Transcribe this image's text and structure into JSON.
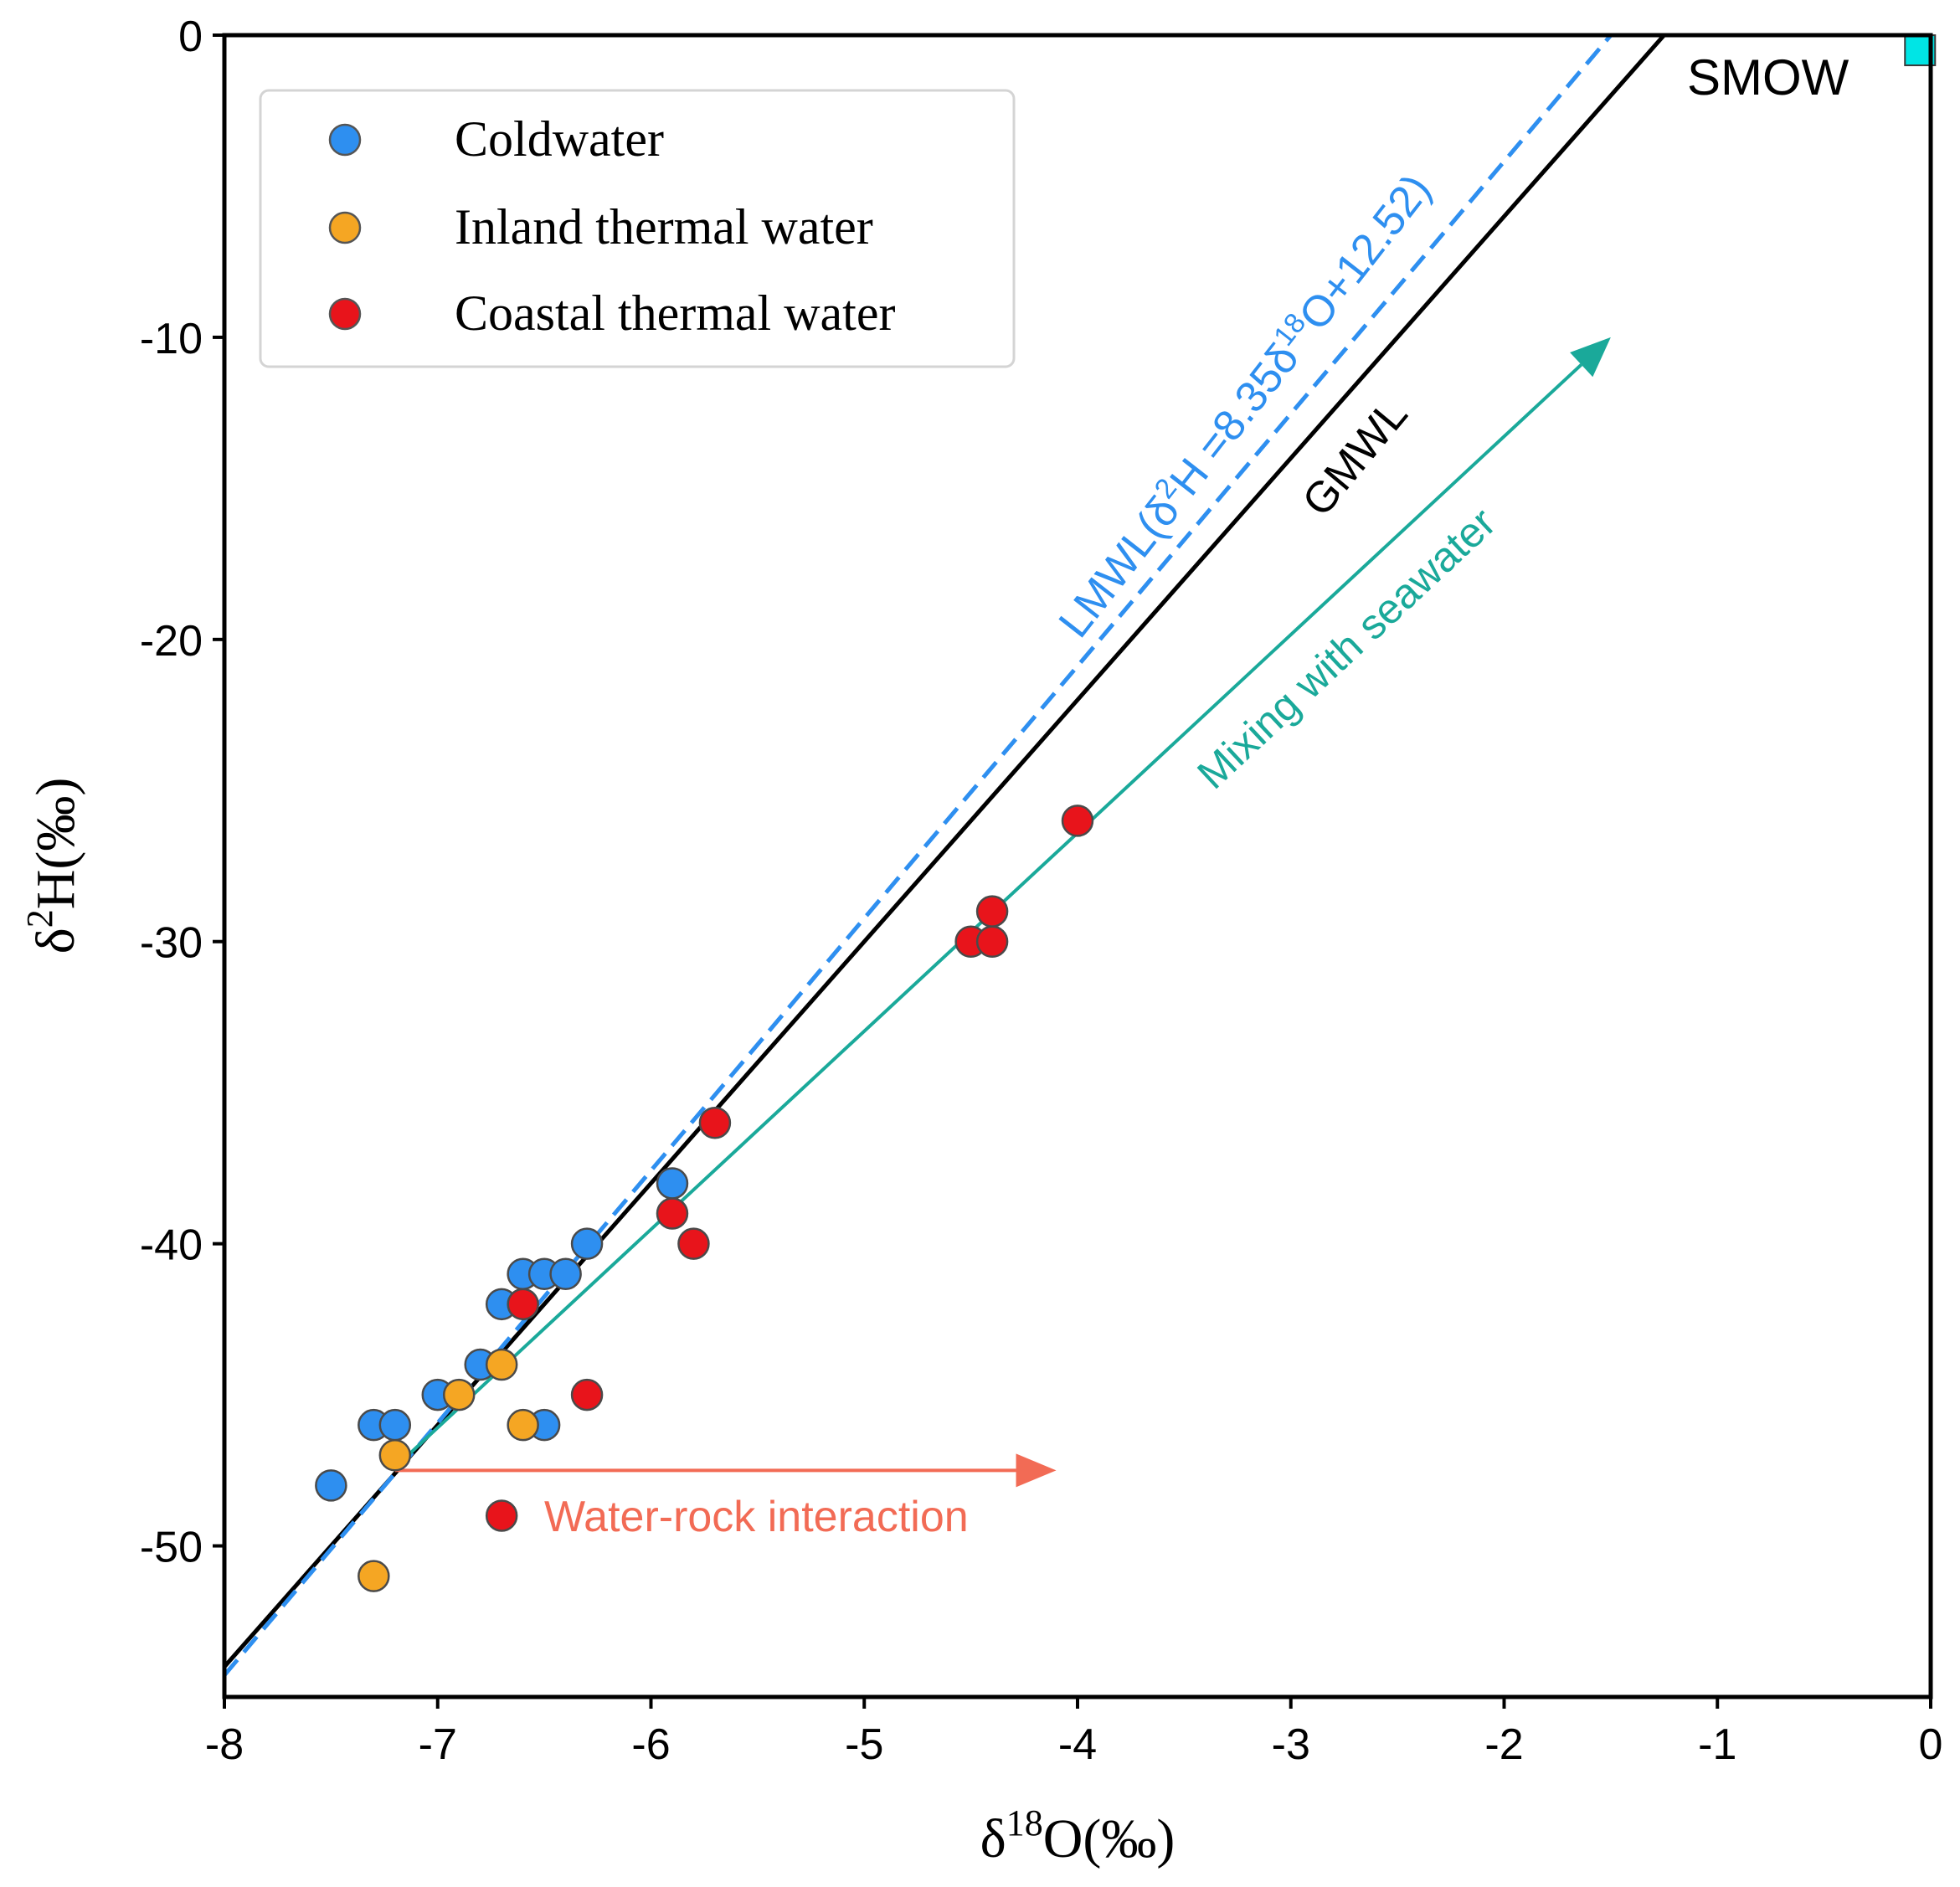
{
  "chart_data": {
    "type": "scatter",
    "xlabel": "δ18O(‰)",
    "ylabel": "δ2H(‰)",
    "xlim": [
      -8,
      0
    ],
    "ylim": [
      -55,
      0
    ],
    "xticks": [
      -8,
      -7,
      -6,
      -5,
      -4,
      -3,
      -2,
      -1,
      0
    ],
    "yticks": [
      0,
      -10,
      -20,
      -30,
      -40,
      -50
    ],
    "xtick_labels": [
      "-8",
      "-7",
      "-6",
      "-5",
      "-4",
      "-3",
      "-2",
      "-1",
      "0"
    ],
    "ytick_labels": [
      "0",
      "-10",
      "-20",
      "-30",
      "-40",
      "-50"
    ],
    "series": [
      {
        "name": "Coldwater",
        "color": "#2e8ff0",
        "points": [
          [
            -7.5,
            -48
          ],
          [
            -7.3,
            -46
          ],
          [
            -7.2,
            -46
          ],
          [
            -7.0,
            -45
          ],
          [
            -6.8,
            -44
          ],
          [
            -6.7,
            -42
          ],
          [
            -6.6,
            -41
          ],
          [
            -6.5,
            -41
          ],
          [
            -6.4,
            -41
          ],
          [
            -6.3,
            -40
          ],
          [
            -6.5,
            -46
          ],
          [
            -5.9,
            -38
          ]
        ]
      },
      {
        "name": "Inland thermal water",
        "color": "#f5a623",
        "points": [
          [
            -7.3,
            -51
          ],
          [
            -7.2,
            -47
          ],
          [
            -6.9,
            -45
          ],
          [
            -6.7,
            -44
          ],
          [
            -6.6,
            -46
          ]
        ]
      },
      {
        "name": "Coastal thermal water",
        "color": "#e8141b",
        "points": [
          [
            -6.7,
            -49
          ],
          [
            -6.3,
            -45
          ],
          [
            -6.6,
            -42
          ],
          [
            -5.9,
            -39
          ],
          [
            -5.8,
            -40
          ],
          [
            -5.7,
            -36
          ],
          [
            -4.5,
            -30
          ],
          [
            -4.4,
            -30
          ],
          [
            -4.4,
            -29
          ],
          [
            -4.0,
            -26
          ]
        ]
      }
    ],
    "lines": [
      {
        "name": "GMWL",
        "slope": 8,
        "intercept": 10,
        "color": "#000000",
        "style": "solid",
        "label": "GMWL"
      },
      {
        "name": "LMWL",
        "slope": 8.35,
        "intercept": 12.52,
        "color": "#2e8ff0",
        "style": "dashed",
        "label_prefix": "LMWL(δ",
        "label_sup1": "2",
        "label_mid": "H =8.35δ",
        "label_sup2": "18",
        "label_suffix": "O+12.52)"
      }
    ],
    "annotations": {
      "mixing": {
        "text": "Mixing with seawater",
        "from": [
          -7.2,
          -47.4
        ],
        "to": [
          -1.5,
          -10
        ],
        "color": "#1aa99a"
      },
      "water_rock": {
        "text": "Water-rock interaction",
        "from": [
          -7.2,
          -47.5
        ],
        "to": [
          -4.1,
          -47.5
        ],
        "color": "#f26b55"
      },
      "smow": {
        "text": "SMOW",
        "point": [
          -0.05,
          -0.5
        ],
        "color": "#00e5e5"
      }
    },
    "legend": {
      "position": "top-left",
      "entries": [
        "Coldwater",
        "Inland thermal water",
        "Coastal thermal water"
      ]
    }
  }
}
